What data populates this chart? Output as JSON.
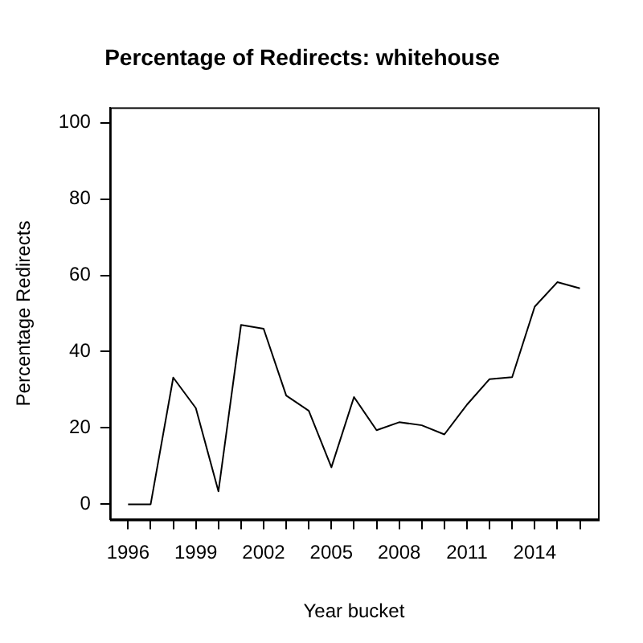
{
  "chart_data": {
    "type": "line",
    "title": "Percentage of Redirects: whitehouse",
    "xlabel": "Year bucket",
    "ylabel": "Percentage Redirects",
    "x": [
      1996,
      1997,
      1998,
      1999,
      2000,
      2001,
      2002,
      2003,
      2004,
      2005,
      2006,
      2007,
      2008,
      2009,
      2010,
      2011,
      2012,
      2013,
      2014,
      2015,
      2016
    ],
    "series": [
      {
        "color": "#000000",
        "values": [
          0,
          0,
          33.2,
          25.2,
          3.4,
          47.0,
          46.0,
          28.5,
          24.5,
          9.7,
          28.1,
          19.4,
          21.5,
          20.7,
          18.3,
          26.1,
          32.8,
          33.3,
          51.8,
          58.2,
          56.6
        ]
      }
    ],
    "xlim": [
      1995.2,
      2016.8
    ],
    "xticks": [
      1996,
      {
        "value": 1997,
        "label": null
      },
      {
        "value": 1998,
        "label": null
      },
      1999,
      {
        "value": 2000,
        "label": null
      },
      {
        "value": 2001,
        "label": null
      },
      2002,
      {
        "value": 2003,
        "label": null
      },
      {
        "value": 2004,
        "label": null
      },
      2005,
      {
        "value": 2006,
        "label": null
      },
      {
        "value": 2007,
        "label": null
      },
      2008,
      {
        "value": 2009,
        "label": null
      },
      {
        "value": 2010,
        "label": null
      },
      2011,
      {
        "value": 2012,
        "label": null
      },
      {
        "value": 2013,
        "label": null
      },
      2014,
      {
        "value": 2015,
        "label": null
      },
      {
        "value": 2016,
        "label": null
      }
    ],
    "ylim": [
      -4,
      104
    ],
    "yticks": [
      0,
      20,
      40,
      60,
      80,
      100
    ],
    "grid": false,
    "legend": false,
    "marker": "none",
    "line_style": "solid"
  }
}
